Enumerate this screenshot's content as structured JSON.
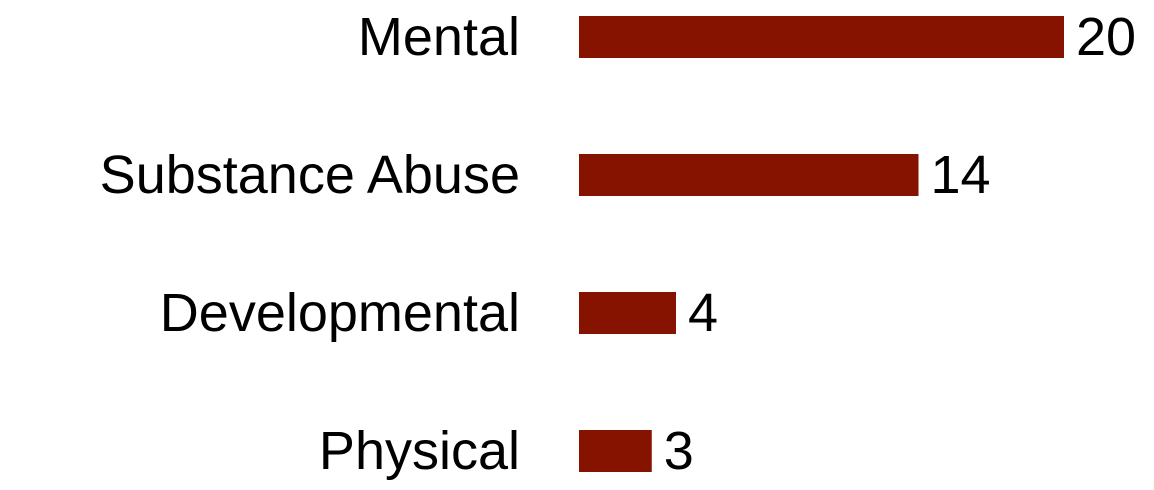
{
  "chart_data": {
    "type": "bar",
    "orientation": "horizontal",
    "categories": [
      "Mental",
      "Substance Abuse",
      "Developmental",
      "Physical"
    ],
    "values": [
      20,
      14,
      4,
      3
    ],
    "title": "",
    "xlabel": "",
    "ylabel": "",
    "xlim": [
      0,
      20
    ],
    "grid": false,
    "legend": "none",
    "data_labels": true,
    "bar_color": "#861200",
    "text_color": "#000000"
  }
}
